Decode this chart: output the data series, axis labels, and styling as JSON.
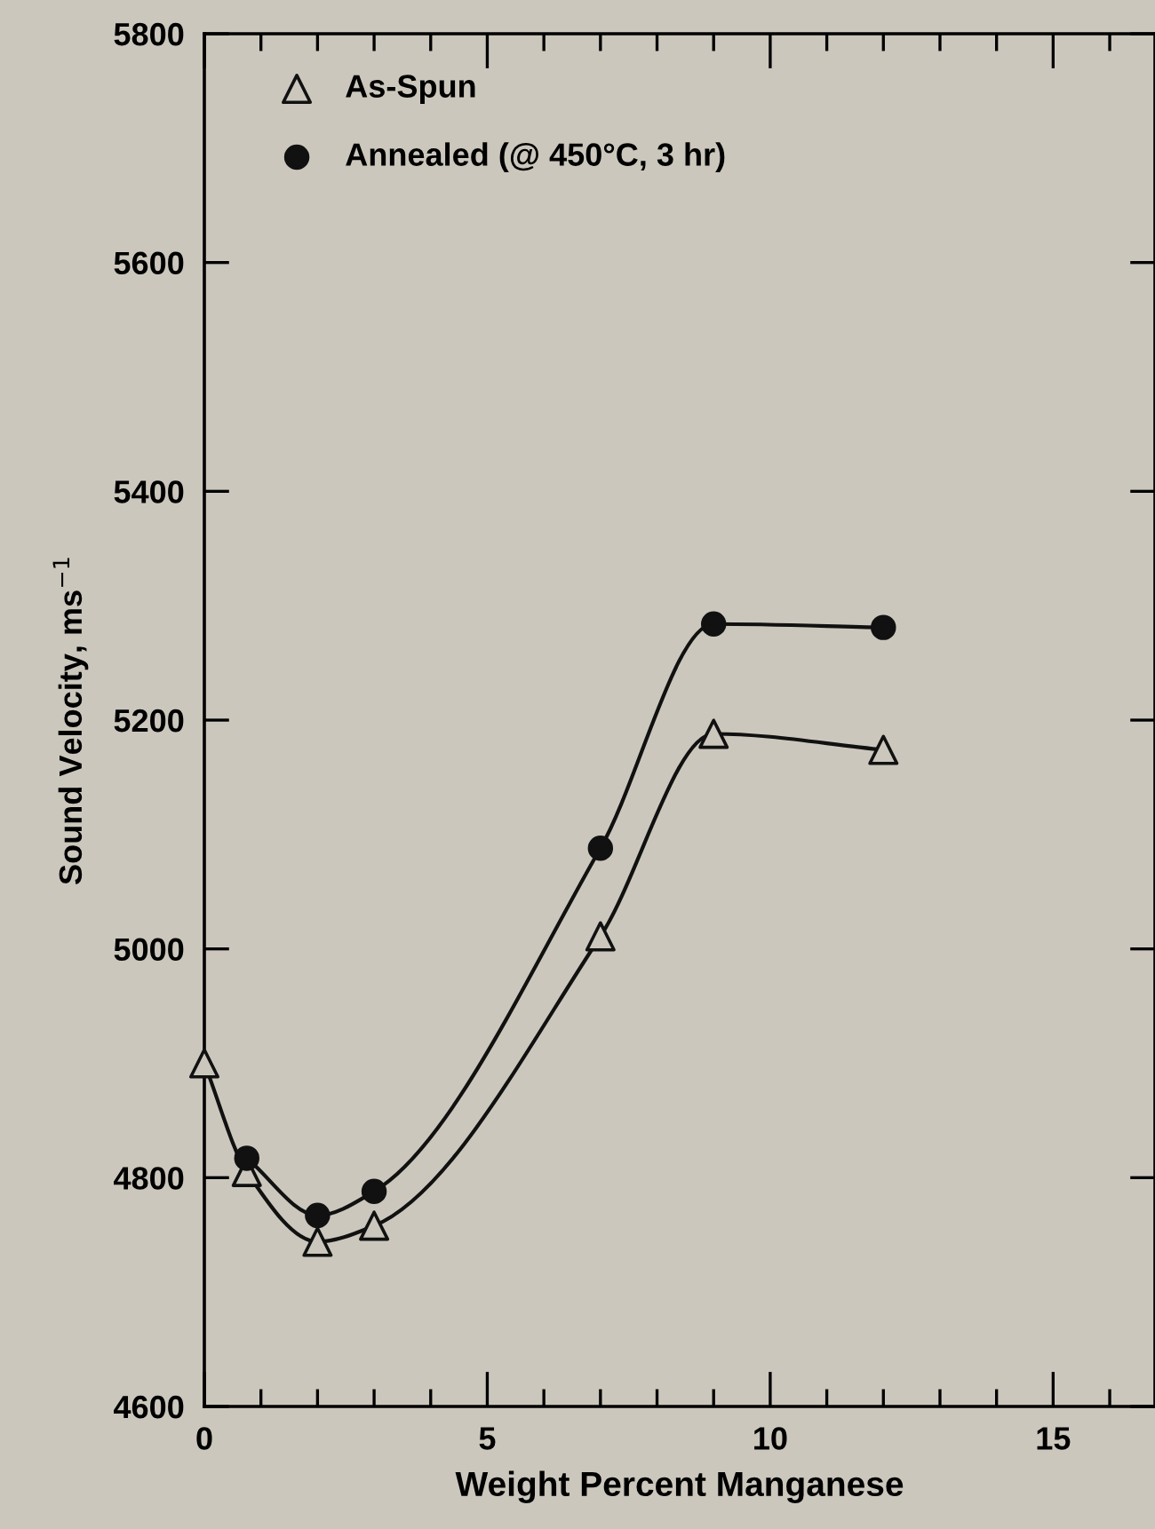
{
  "chart_data": {
    "type": "line",
    "xlabel": "Weight Percent Manganese",
    "ylabel": "Sound Velocity, ms$^{−1}$",
    "xlim": [
      0,
      16.8
    ],
    "ylim": [
      4600,
      5800
    ],
    "xticks": [
      0,
      {
        "value": 1,
        "label": null
      },
      {
        "value": 2,
        "label": null
      },
      {
        "value": 3,
        "label": null
      },
      {
        "value": 4,
        "label": null
      },
      5,
      {
        "value": 6,
        "label": null
      },
      {
        "value": 7,
        "label": null
      },
      {
        "value": 8,
        "label": null
      },
      {
        "value": 9,
        "label": null
      },
      10,
      {
        "value": 11,
        "label": null
      },
      {
        "value": 12,
        "label": null
      },
      {
        "value": 13,
        "label": null
      },
      {
        "value": 14,
        "label": null
      },
      15,
      {
        "value": 16,
        "label": null
      }
    ],
    "yticks": [
      4600,
      4800,
      5000,
      5200,
      5400,
      5600,
      5800
    ],
    "grid": false,
    "legend": "top left",
    "series": [
      {
        "name": "As-Spun",
        "color": "#111111",
        "marker": "triangle",
        "x": [
          0,
          0.75,
          2,
          3,
          7,
          9,
          12
        ],
        "values": [
          4900,
          4805,
          4744,
          4758,
          5011,
          5188,
          5174
        ]
      },
      {
        "name": "Annealed (@ 450°C, 3 hr)",
        "color": "#111111",
        "marker": "circle",
        "x": [
          0.75,
          2,
          3,
          7,
          9,
          12
        ],
        "values": [
          4817,
          4767,
          4788,
          5088,
          5284,
          5281
        ]
      }
    ]
  }
}
